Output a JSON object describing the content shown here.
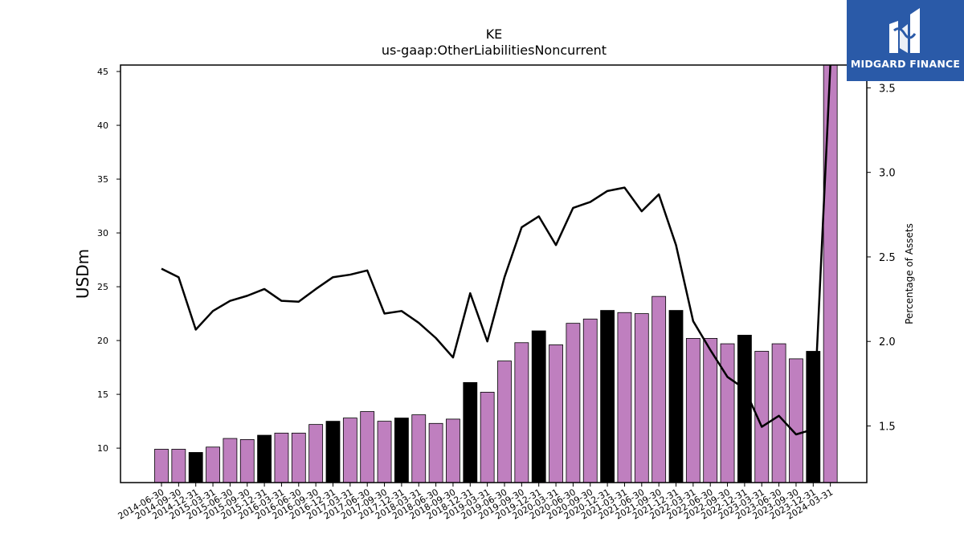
{
  "brand": {
    "name": "MIDGARD FINANCE",
    "logo_icon": "midgard-m-icon",
    "bg_color": "#2a5aa8"
  },
  "chart_data": {
    "type": "bar",
    "title": "KE",
    "subtitle": "us-gaap:OtherLiabilitiesNoncurrent",
    "ylabel": "USDm",
    "y2label": "Percentage of Assets",
    "ylim": [
      6.8,
      45.6
    ],
    "y2lim": [
      1.165,
      3.635
    ],
    "yticks": [
      10,
      15,
      20,
      25,
      30,
      35,
      40,
      45
    ],
    "y2ticks": [
      1.5,
      2.0,
      2.5,
      3.0,
      3.5
    ],
    "bar_color": "#bf7fbf",
    "highlight_color": "#000000",
    "line_color": "#000000",
    "categories": [
      "2014-06-30",
      "2014-09-30",
      "2014-12-31",
      "2015-03-31",
      "2015-06-30",
      "2015-09-30",
      "2015-12-31",
      "2016-03-31",
      "2016-06-30",
      "2016-09-30",
      "2016-12-31",
      "2017-03-31",
      "2017-06-30",
      "2017-09-30",
      "2017-12-31",
      "2018-03-31",
      "2018-06-30",
      "2018-09-30",
      "2018-12-31",
      "2019-03-31",
      "2019-06-30",
      "2019-09-30",
      "2019-12-31",
      "2020-03-31",
      "2020-06-30",
      "2020-09-30",
      "2020-12-31",
      "2021-03-31",
      "2021-06-30",
      "2021-09-30",
      "2021-12-31",
      "2022-03-31",
      "2022-06-30",
      "2022-09-30",
      "2022-12-31",
      "2023-03-31",
      "2023-06-30",
      "2023-09-30",
      "2023-12-31",
      "2024-03-31"
    ],
    "series": [
      {
        "type": "bar",
        "axis": "left",
        "values": [
          9.9,
          9.9,
          9.6,
          10.1,
          10.9,
          10.8,
          11.2,
          11.4,
          11.4,
          12.2,
          12.5,
          12.8,
          13.4,
          12.5,
          12.8,
          13.1,
          12.3,
          12.7,
          16.1,
          15.2,
          18.1,
          19.8,
          20.9,
          19.6,
          21.6,
          22.0,
          22.8,
          22.6,
          22.5,
          24.1,
          22.8,
          20.2,
          20.2,
          19.7,
          20.5,
          19.0,
          19.7,
          18.3,
          19.0,
          45.6
        ],
        "highlight": [
          false,
          false,
          true,
          false,
          false,
          false,
          true,
          false,
          false,
          false,
          true,
          false,
          false,
          false,
          true,
          false,
          false,
          false,
          true,
          false,
          false,
          false,
          true,
          false,
          false,
          false,
          true,
          false,
          false,
          false,
          true,
          false,
          false,
          false,
          true,
          false,
          false,
          false,
          true,
          false
        ]
      },
      {
        "type": "line",
        "axis": "right",
        "values": [
          2.43,
          2.38,
          2.07,
          2.18,
          2.24,
          2.27,
          2.31,
          2.24,
          2.235,
          2.31,
          2.38,
          2.395,
          2.42,
          2.165,
          2.18,
          2.11,
          2.02,
          1.905,
          2.285,
          2.0,
          2.38,
          2.675,
          2.74,
          2.57,
          2.79,
          2.825,
          2.89,
          2.91,
          2.77,
          2.87,
          2.57,
          2.12,
          1.95,
          1.79,
          1.72,
          1.495,
          1.56,
          1.45,
          1.48,
          3.635
        ]
      }
    ]
  }
}
